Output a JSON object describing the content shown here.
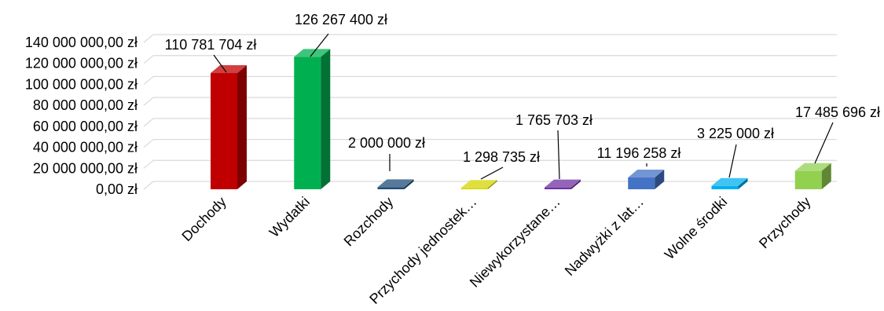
{
  "chart_data": {
    "type": "bar",
    "style": "3d-column",
    "title": "",
    "xlabel": "",
    "ylabel": "",
    "ylim": [
      0,
      140000000
    ],
    "yticks": [
      0,
      20000000,
      40000000,
      60000000,
      80000000,
      100000000,
      120000000,
      140000000
    ],
    "ytick_labels": [
      "0,00 zł",
      "20 000 000,00 zł",
      "40 000 000,00 zł",
      "60 000 000,00 zł",
      "80 000 000,00 zł",
      "100 000 000,00 zł",
      "120 000 000,00 zł",
      "140 000 000,00 zł"
    ],
    "grid": true,
    "legend": "none",
    "categories": [
      "Dochody",
      "Wydatki",
      "Rozchody",
      "Przychody jednostek…",
      "Niewykorzystane…",
      "Nadwyżki z lat…",
      "Wolne środki",
      "Przychody"
    ],
    "values": [
      110781704,
      126267400,
      2000000,
      1298735,
      1765703,
      11196258,
      3225000,
      17485696
    ],
    "data_labels": [
      "110 781 704 zł",
      "126 267 400 zł",
      "2 000 000 zł",
      "1 298 735 zł",
      "1 765 703 zł",
      "11 196 258 zł",
      "3 225 000 zł",
      "17 485 696 zł"
    ],
    "colors": [
      "#c00000",
      "#00b050",
      "#1f4e79",
      "#d4d400",
      "#7030a0",
      "#4472c4",
      "#00b0f0",
      "#92d050"
    ]
  }
}
